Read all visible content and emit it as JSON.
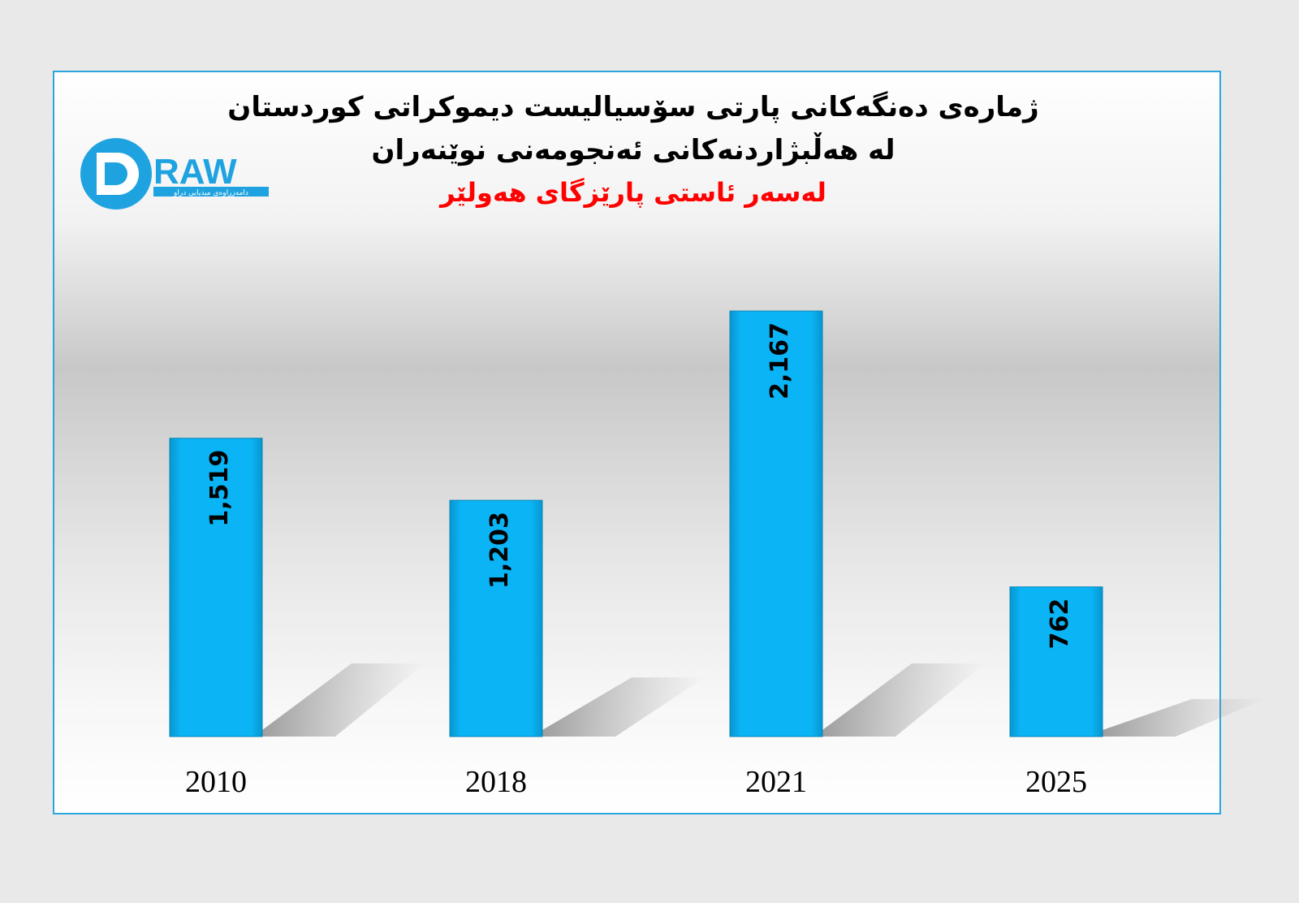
{
  "chart_data": {
    "type": "bar",
    "title": "ژمارەی دەنگەکانی پارتی سۆسیالیست دیموکراتی کوردستان",
    "subtitle": "لە هەڵبژاردنەکانی ئەنجومەنی نوێنەران",
    "subtitle2": "لەسەر ئاستی پارێزگای هەولێر",
    "categories": [
      "2010",
      "2018",
      "2021",
      "2025"
    ],
    "values": [
      1519,
      1203,
      2167,
      762
    ],
    "value_labels": [
      "1,519",
      "1,203",
      "2,167",
      "762"
    ],
    "xlabel": "",
    "ylabel": "",
    "ylim": [
      0,
      2167
    ],
    "grid": false,
    "bar_color": "#0ab4f5",
    "title_color": "#000000",
    "subtitle2_color": "#ff0000"
  },
  "logo": {
    "text": "DRAW",
    "tagline": "دامەزراوەی میدیایی دراو",
    "color": "#1fa3e0"
  }
}
